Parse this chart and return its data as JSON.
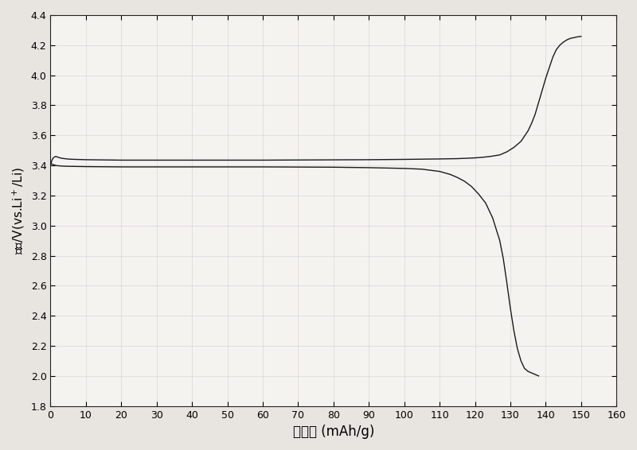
{
  "xlabel": "比容量 (mAh/g)",
  "ylabel": "电压/V(vs.Li⁺/Li)",
  "xlim": [
    0,
    160
  ],
  "ylim": [
    1.8,
    4.4
  ],
  "xticks": [
    0,
    10,
    20,
    30,
    40,
    50,
    60,
    70,
    80,
    90,
    100,
    110,
    120,
    130,
    140,
    150,
    160
  ],
  "yticks": [
    1.8,
    2.0,
    2.2,
    2.4,
    2.6,
    2.8,
    3.0,
    3.2,
    3.4,
    3.6,
    3.8,
    4.0,
    4.2,
    4.4
  ],
  "line_color": "#1a1a1a",
  "fig_bg_color": "#e8e5e0",
  "plot_bg_color": "#f5f3f0",
  "charge_x": [
    0.0,
    0.2,
    0.5,
    0.8,
    1.0,
    1.5,
    2.0,
    2.5,
    3.0,
    4.0,
    5.0,
    7.0,
    10,
    20,
    30,
    40,
    50,
    60,
    70,
    80,
    90,
    100,
    110,
    115,
    120,
    123,
    125,
    127,
    129,
    131,
    133,
    135,
    136,
    137,
    138,
    139,
    140,
    141,
    142,
    143,
    144,
    145,
    146,
    147,
    148,
    149,
    150
  ],
  "charge_y": [
    3.4,
    3.42,
    3.44,
    3.45,
    3.455,
    3.46,
    3.455,
    3.452,
    3.448,
    3.445,
    3.442,
    3.44,
    3.438,
    3.435,
    3.435,
    3.435,
    3.435,
    3.435,
    3.436,
    3.437,
    3.438,
    3.44,
    3.443,
    3.445,
    3.45,
    3.456,
    3.462,
    3.47,
    3.49,
    3.52,
    3.56,
    3.63,
    3.68,
    3.74,
    3.82,
    3.9,
    3.98,
    4.05,
    4.12,
    4.17,
    4.2,
    4.22,
    4.235,
    4.245,
    4.25,
    4.255,
    4.258
  ],
  "discharge_x": [
    0.0,
    0.3,
    0.8,
    1.5,
    2.0,
    3.0,
    5.0,
    10,
    20,
    30,
    40,
    50,
    60,
    70,
    80,
    90,
    100,
    105,
    110,
    113,
    115,
    117,
    119,
    121,
    123,
    125,
    127,
    128,
    129,
    130,
    131,
    132,
    133,
    134,
    135,
    136,
    137,
    138
  ],
  "discharge_y": [
    3.42,
    3.41,
    3.405,
    3.4,
    3.398,
    3.396,
    3.394,
    3.392,
    3.39,
    3.39,
    3.39,
    3.39,
    3.39,
    3.389,
    3.388,
    3.385,
    3.38,
    3.375,
    3.36,
    3.34,
    3.32,
    3.295,
    3.26,
    3.21,
    3.15,
    3.05,
    2.9,
    2.78,
    2.62,
    2.45,
    2.3,
    2.18,
    2.1,
    2.05,
    2.03,
    2.02,
    2.01,
    2.0
  ]
}
